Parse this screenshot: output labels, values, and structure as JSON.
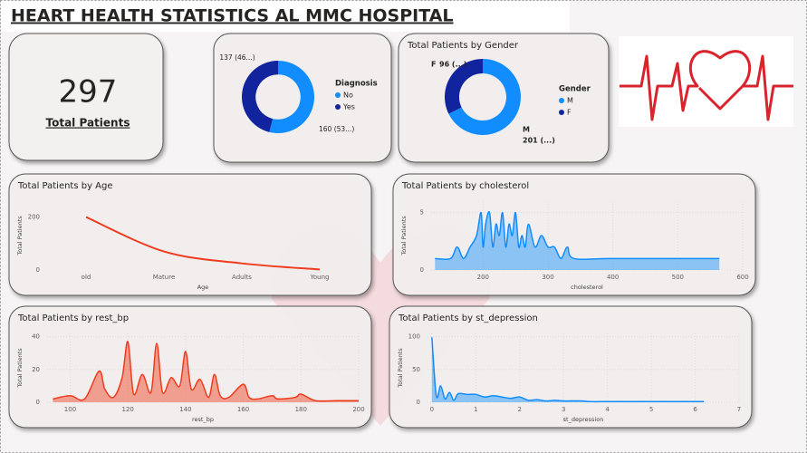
{
  "header": {
    "title": "HEART HEALTH STATISTICS AL MMC HOSPITAL"
  },
  "kpi": {
    "value": 297,
    "label": "Total Patients"
  },
  "chart_data": [
    {
      "type": "donut",
      "legend_title": "Diagnosis",
      "categories": [
        "No",
        "Yes"
      ],
      "values": [
        160,
        137
      ],
      "value_labels": [
        "160 (53...)",
        "137 (46...)"
      ],
      "colors": [
        "#118dff",
        "#12239e"
      ]
    },
    {
      "type": "donut",
      "title": "Total Patients by Gender",
      "legend_title": "Gender",
      "categories": [
        "M",
        "F"
      ],
      "values": [
        201,
        96
      ],
      "value_labels": [
        "201 (...)",
        "96 (...)"
      ],
      "colors": [
        "#118dff",
        "#12239e"
      ]
    },
    {
      "type": "line",
      "title": "Total Patients by Age",
      "x_label": "Age",
      "y_label": "Total Patients",
      "categories": [
        "old",
        "Mature",
        "Adults",
        "Young"
      ],
      "values": [
        200,
        70,
        25,
        2
      ],
      "color": "#f03c1e",
      "ylim": [
        0,
        260
      ],
      "yticks": [
        0,
        200
      ],
      "grid": false
    },
    {
      "type": "area",
      "title": "Total Patients by cholesterol",
      "x_label": "cholesterol",
      "y_label": "Total Patients",
      "x": [
        126,
        150,
        160,
        170,
        180,
        190,
        197,
        200,
        204,
        210,
        215,
        220,
        225,
        230,
        235,
        240,
        245,
        250,
        255,
        260,
        265,
        270,
        280,
        290,
        300,
        310,
        320,
        330,
        340,
        400,
        564
      ],
      "values": [
        1,
        1,
        2,
        1,
        2,
        3,
        5,
        2,
        4,
        5,
        2,
        4,
        3,
        5,
        2,
        4,
        3,
        5,
        2,
        3,
        2,
        4,
        2,
        3,
        2,
        2,
        1,
        2,
        1,
        1,
        1
      ],
      "color": "#118dff",
      "xlim": [
        120,
        600
      ],
      "xticks": [
        200,
        300,
        400,
        500,
        600
      ],
      "ylim": [
        0,
        6
      ],
      "yticks": [
        0,
        5
      ],
      "grid": true
    },
    {
      "type": "area",
      "title": "Total Patients by rest_bp",
      "x_label": "rest_bp",
      "y_label": "Total Patients",
      "x": [
        94,
        100,
        105,
        110,
        112,
        115,
        118,
        120,
        122,
        125,
        128,
        130,
        132,
        135,
        138,
        140,
        142,
        145,
        148,
        150,
        152,
        155,
        160,
        162,
        165,
        170,
        172,
        178,
        180,
        185,
        192,
        200
      ],
      "values": [
        2,
        4,
        2,
        19,
        8,
        3,
        15,
        37,
        5,
        17,
        6,
        36,
        6,
        15,
        10,
        31,
        8,
        14,
        3,
        17,
        4,
        3,
        11,
        3,
        2,
        4,
        2,
        3,
        5,
        1,
        1,
        1
      ],
      "color": "#f03c1e",
      "xlim": [
        92,
        200
      ],
      "xticks": [
        100,
        120,
        140,
        160,
        180,
        200
      ],
      "ylim": [
        0,
        42
      ],
      "yticks": [
        0,
        20,
        40
      ],
      "grid": true
    },
    {
      "type": "area",
      "title": "Total Patients by st_depression",
      "x_label": "st_depression",
      "y_label": "Total Patients",
      "x": [
        0,
        0.1,
        0.2,
        0.3,
        0.4,
        0.5,
        0.6,
        0.8,
        1,
        1.2,
        1.4,
        1.6,
        1.8,
        2,
        2.2,
        2.4,
        2.6,
        2.8,
        3,
        3.4,
        3.6,
        4,
        4.2,
        5.6,
        6.2
      ],
      "values": [
        99,
        10,
        25,
        5,
        15,
        3,
        13,
        12,
        12,
        8,
        10,
        8,
        6,
        8,
        3,
        4,
        2,
        3,
        2,
        2,
        1,
        1,
        1,
        1,
        1
      ],
      "color": "#118dff",
      "xlim": [
        -0.1,
        7
      ],
      "xticks": [
        0,
        1,
        2,
        3,
        4,
        5,
        6,
        7
      ],
      "ylim": [
        0,
        105
      ],
      "yticks": [
        0,
        50,
        100
      ],
      "grid": true
    }
  ]
}
